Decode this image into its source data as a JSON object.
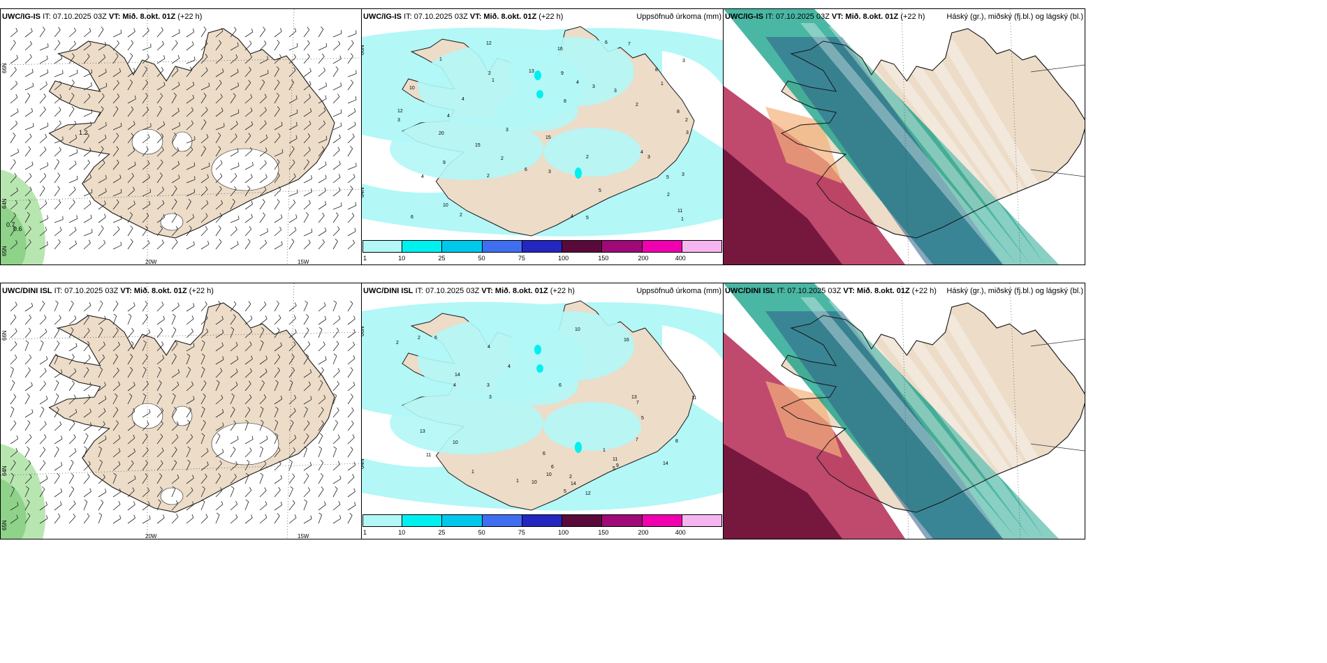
{
  "colors": {
    "land": "#ecdcc8",
    "coast": "#1a1a1a",
    "precip_light": "#b3f7f7",
    "precip_cyan": "#00f0f0",
    "precip_blue": "#00bfe8",
    "low_cloud": "#0e9e86",
    "mid_cloud": "#2c5d8a",
    "high_cloud_red": "#b42a55",
    "high_cloud_dark": "#6e1238"
  },
  "panels": {
    "top_wind": {
      "model": "UWC/IG-IS",
      "it": "IT: 07.10.2025 03Z",
      "vt": "VT: Mið. 8.okt. 01Z",
      "lead": "(+22 h)"
    },
    "top_precip": {
      "model": "UWC/IG-IS",
      "it": "IT: 07.10.2025 03Z",
      "vt": "VT: Mið. 8.okt. 01Z",
      "lead": "(+22 h)",
      "right": "Uppsöfnuð úrkoma (mm)"
    },
    "top_cloud": {
      "model": "UWC/IG-IS",
      "it": "IT: 07.10.2025 03Z",
      "vt": "VT: Mið. 8.okt. 01Z",
      "lead": "(+22 h)",
      "right": "Háský (gr.), miðský (fj.bl.) og lágský (bl.)"
    },
    "bot_wind": {
      "model": "UWC/DINI ISL",
      "it": "IT: 07.10.2025 03Z",
      "vt": "VT: Mið. 8.okt. 01Z",
      "lead": "(+22 h)"
    },
    "bot_precip": {
      "model": "UWC/DINI ISL",
      "it": "IT: 07.10.2025 03Z",
      "vt": "VT: Mið. 8.okt. 01Z",
      "lead": "(+22 h)",
      "right": "Uppsöfnuð úrkoma (mm)"
    },
    "bot_cloud": {
      "model": "UWC/DINI ISL",
      "it": "IT: 07.10.2025 03Z",
      "vt": "VT: Mið. 8.okt. 01Z",
      "lead": "(+22 h)",
      "right": "Háský (gr.), miðský (fj.bl.) og lágský (bl.)"
    }
  },
  "grid_labels": {
    "lon_20": "20W",
    "lon_15": "15W",
    "lat_66": "66N",
    "lat_64": "64N",
    "lat_65": "65N"
  },
  "colorbar": {
    "ticks": [
      "1",
      "10",
      "25",
      "50",
      "75",
      "100",
      "150",
      "200",
      "400"
    ],
    "colors": [
      "#b3f7f7",
      "#00f0f0",
      "#00c8ea",
      "#3f6ff0",
      "#2426c0",
      "#5a0a3a",
      "#a00a78",
      "#f000b0",
      "#f5b6f0"
    ]
  },
  "precip_labels_top": [
    "1",
    "8",
    "3",
    "2",
    "3",
    "3",
    "2",
    "6",
    "5",
    "8",
    "4",
    "3",
    "2",
    "2",
    "4",
    "15",
    "15",
    "12",
    "12",
    "13",
    "11",
    "9",
    "10",
    "9",
    "8",
    "7",
    "6",
    "5",
    "4",
    "3",
    "2",
    "1",
    "20",
    "16",
    "4",
    "3",
    "3",
    "2",
    "1",
    "4",
    "5",
    "10",
    "6",
    "3",
    "2",
    "1",
    "4",
    "3",
    "2"
  ],
  "precip_labels_bot": [
    "1",
    "6",
    "6",
    "2",
    "11",
    "11",
    "10",
    "13",
    "13",
    "14",
    "10",
    "14",
    "10",
    "12",
    "16",
    "14",
    "11",
    "9",
    "8",
    "7",
    "6",
    "5",
    "4",
    "3",
    "2",
    "1",
    "10",
    "5",
    "4",
    "3",
    "2",
    "1",
    "7",
    "6",
    "5",
    "4"
  ],
  "wind_labels_top": [
    "1.2",
    "0.7",
    "0.6"
  ]
}
